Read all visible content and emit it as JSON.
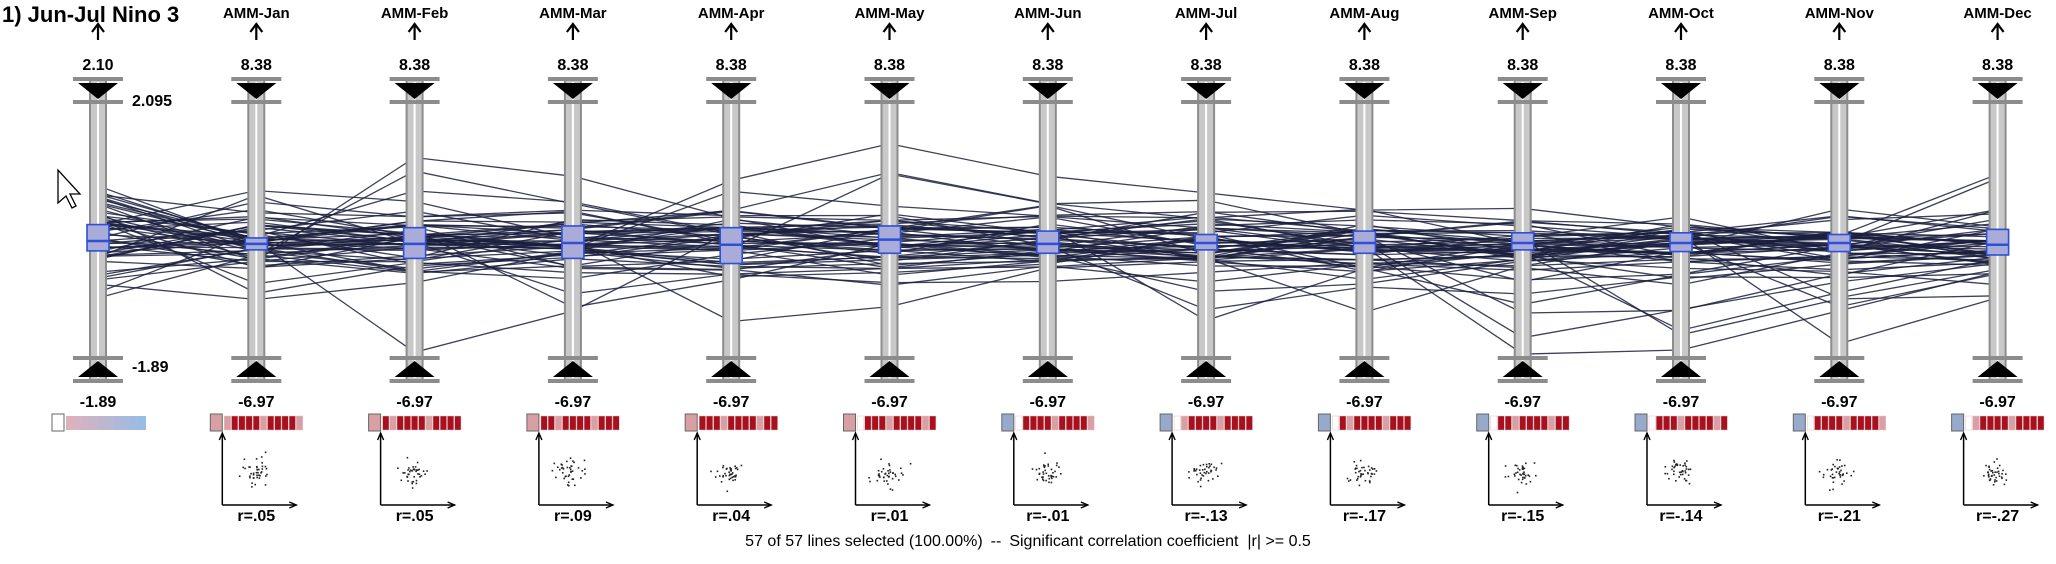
{
  "title": "1) Jun-Jul Nino 3",
  "first_axis": {
    "name": "Jun-Jul Nino 3",
    "top_value": "2.10",
    "bottom_value": "-1.89",
    "max_label": "2.095",
    "min_label": "-1.89",
    "range": [
      -1.89,
      2.095
    ],
    "box": [
      -0.2,
      0.2
    ],
    "median": -0.05
  },
  "axes": [
    {
      "label": "AMM-Jan",
      "top": "8.38",
      "bottom": "-6.97",
      "r": "r=.05",
      "box": [
        -0.4,
        0.3
      ],
      "median": -0.05
    },
    {
      "label": "AMM-Feb",
      "top": "8.38",
      "bottom": "-6.97",
      "r": "r=.05",
      "box": [
        -0.9,
        0.9
      ],
      "median": -0.05
    },
    {
      "label": "AMM-Mar",
      "top": "8.38",
      "bottom": "-6.97",
      "r": "r=.09",
      "box": [
        -0.9,
        1.0
      ],
      "median": 0.0
    },
    {
      "label": "AMM-Apr",
      "top": "8.38",
      "bottom": "-6.97",
      "r": "r=.04",
      "box": [
        -1.2,
        0.9
      ],
      "median": -0.1
    },
    {
      "label": "AMM-May",
      "top": "8.38",
      "bottom": "-6.97",
      "r": "r=.01",
      "box": [
        -0.6,
        1.0
      ],
      "median": 0.2
    },
    {
      "label": "AMM-Jun",
      "top": "8.38",
      "bottom": "-6.97",
      "r": "r=-.01",
      "box": [
        -0.6,
        0.7
      ],
      "median": -0.05
    },
    {
      "label": "AMM-Jul",
      "top": "8.38",
      "bottom": "-6.97",
      "r": "r=-.13",
      "box": [
        -0.4,
        0.5
      ],
      "median": 0.0
    },
    {
      "label": "AMM-Aug",
      "top": "8.38",
      "bottom": "-6.97",
      "r": "r=-.17",
      "box": [
        -0.6,
        0.7
      ],
      "median": 0.0
    },
    {
      "label": "AMM-Sep",
      "top": "8.38",
      "bottom": "-6.97",
      "r": "r=-.15",
      "box": [
        -0.4,
        0.6
      ],
      "median": 0.0
    },
    {
      "label": "AMM-Oct",
      "top": "8.38",
      "bottom": "-6.97",
      "r": "r=-.14",
      "box": [
        -0.5,
        0.6
      ],
      "median": 0.0
    },
    {
      "label": "AMM-Nov",
      "top": "8.38",
      "bottom": "-6.97",
      "r": "r=-.21",
      "box": [
        -0.5,
        0.5
      ],
      "median": 0.0
    },
    {
      "label": "AMM-Dec",
      "top": "8.38",
      "bottom": "-6.97",
      "r": "r=-.27",
      "box": [
        -0.7,
        0.8
      ],
      "median": -0.1
    }
  ],
  "lines": {
    "selected": 57,
    "total": 57
  },
  "footer": {
    "selection": "57 of 57 lines selected (100.00%)",
    "separator": "--",
    "significance": "Significant correlation coefficient  |r| >= 0.5"
  },
  "colors": {
    "polyline": "#1a1f3d",
    "axis_bar": "#c8c8c8",
    "axis_outline": "#8c8c8c",
    "box_fill": "#a9abd8",
    "box_stroke": "#2e4fd6",
    "corr_red": "#a8101e",
    "corr_pink": "#d8a0a4",
    "corr_blue": "#98aacc"
  },
  "icons": {
    "pointer": "mouse-cursor-icon",
    "arrow": "arrow-up-icon",
    "slider": "slider-triangle-icon"
  }
}
